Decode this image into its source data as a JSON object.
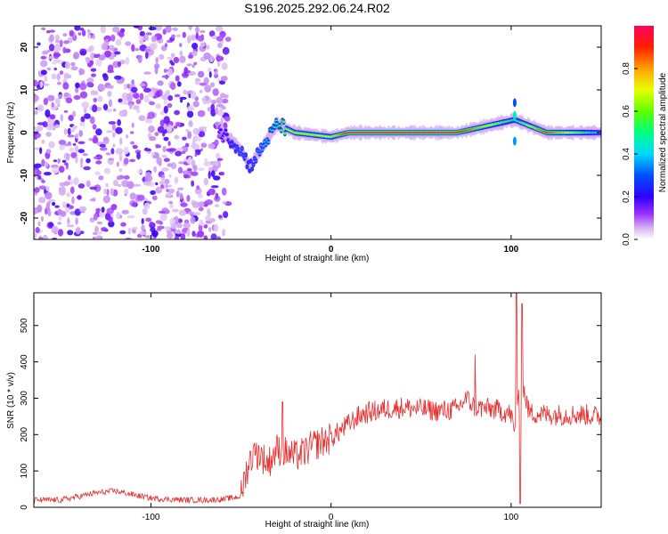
{
  "title": "S196.2025.292.06.24.R02",
  "chart_data": [
    {
      "type": "heatmap",
      "name": "spectrogram",
      "xlabel": "Height of straight line (km)",
      "ylabel": "Frequency (Hz)",
      "xlim": [
        -165,
        150
      ],
      "ylim": [
        -25,
        25
      ],
      "xticks": [
        -100,
        0,
        100
      ],
      "yticks": [
        -20,
        -10,
        0,
        10,
        20
      ],
      "colorbar": {
        "label": "Normalized spectral amplitude",
        "range": [
          0,
          1
        ],
        "ticks": [
          "0.0",
          "0.2",
          "0.4",
          "0.6",
          "0.8"
        ]
      },
      "description_points": [
        {
          "x": -165,
          "y_center": 0,
          "amp": 0.15
        },
        {
          "x": -60,
          "y_center": 0,
          "amp": 0.2
        },
        {
          "x": -50,
          "y_center": -4,
          "amp": 0.35
        },
        {
          "x": -45,
          "y_center": -8,
          "amp": 0.3
        },
        {
          "x": -30,
          "y_center": 2,
          "amp": 0.5
        },
        {
          "x": -20,
          "y_center": 0,
          "amp": 0.75
        },
        {
          "x": 0,
          "y_center": -1,
          "amp": 0.7
        },
        {
          "x": 10,
          "y_center": 0,
          "amp": 0.95
        },
        {
          "x": 70,
          "y_center": 0,
          "amp": 0.95
        },
        {
          "x": 102,
          "y_center": 3,
          "amp": 0.5
        },
        {
          "x": 120,
          "y_center": 0,
          "amp": 0.9
        },
        {
          "x": 150,
          "y_center": 0,
          "amp": 0.4
        }
      ]
    },
    {
      "type": "line",
      "name": "snr",
      "xlabel": "Height of straight line (km)",
      "ylabel": "SNR (10 * v/v)",
      "xlim": [
        -165,
        150
      ],
      "ylim": [
        0,
        590
      ],
      "xticks": [
        -100,
        0,
        100
      ],
      "yticks": [
        0,
        100,
        200,
        300,
        400,
        500
      ],
      "color": "#e83030",
      "series": [
        {
          "name": "SNR",
          "x": [
            -165,
            -150,
            -140,
            -130,
            -120,
            -110,
            -100,
            -90,
            -80,
            -70,
            -60,
            -50,
            -48,
            -45,
            -40,
            -35,
            -30,
            -25,
            -20,
            -15,
            -10,
            -5,
            0,
            5,
            10,
            15,
            20,
            30,
            40,
            50,
            60,
            70,
            75,
            80,
            90,
            95,
            100,
            102,
            104,
            105,
            106,
            108,
            110,
            120,
            130,
            140,
            150
          ],
          "y": [
            20,
            20,
            30,
            40,
            45,
            35,
            25,
            22,
            20,
            20,
            22,
            30,
            80,
            130,
            150,
            120,
            160,
            150,
            140,
            150,
            170,
            180,
            190,
            210,
            230,
            250,
            260,
            270,
            275,
            270,
            265,
            270,
            300,
            275,
            270,
            265,
            255,
            200,
            320,
            150,
            350,
            300,
            260,
            255,
            255,
            255,
            250
          ],
          "spikes": [
            {
              "x": -43,
              "y": 170
            },
            {
              "x": -27,
              "y": 290
            },
            {
              "x": 80,
              "y": 420
            },
            {
              "x": 103,
              "y": 590
            },
            {
              "x": 106,
              "y": 560
            },
            {
              "x": 105,
              "y": 10
            }
          ]
        }
      ]
    }
  ]
}
